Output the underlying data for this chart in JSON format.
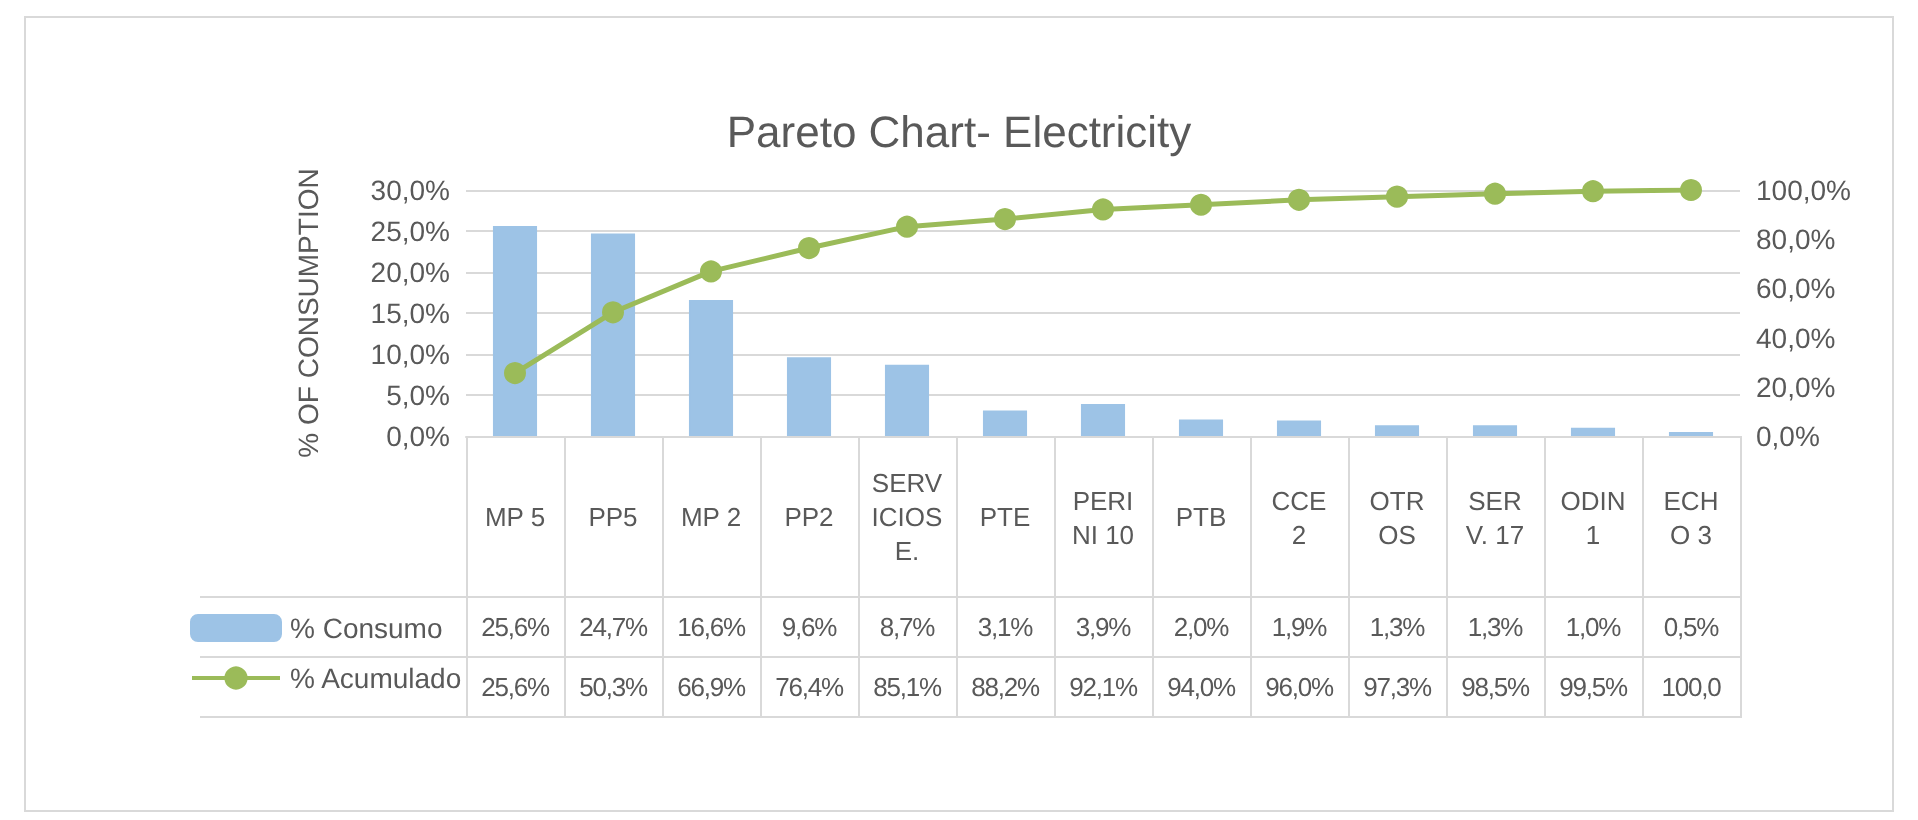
{
  "chart_data": {
    "type": "bar",
    "title": "Pareto Chart- Electricity",
    "ylabel": "% OF CONSUMPTION",
    "categories": [
      "MP 5",
      "PP5",
      "MP 2",
      "PP2",
      "SERVICIOS E.",
      "PTE",
      "PERINI 10",
      "PTB",
      "CCE 2",
      "OTROS",
      "SERV. 17",
      "ODIN1",
      "ECHO 3"
    ],
    "series": [
      {
        "name": "% Consumo",
        "color": "#9dc3e6",
        "values": [
          25.6,
          24.7,
          16.6,
          9.6,
          8.7,
          3.1,
          3.9,
          2.0,
          1.9,
          1.3,
          1.3,
          1.0,
          0.5
        ],
        "value_labels": [
          "25,6%",
          "24,7%",
          "16,6%",
          "9,6%",
          "8,7%",
          "3,1%",
          "3,9%",
          "2,0%",
          "1,9%",
          "1,3%",
          "1,3%",
          "1,0%",
          "0,5%"
        ]
      },
      {
        "name": "% Acumulado",
        "type": "line",
        "axis": "y2",
        "color": "#9bbb59",
        "marker": "circle",
        "values": [
          25.6,
          50.3,
          66.9,
          76.4,
          85.1,
          88.2,
          92.1,
          94.0,
          96.0,
          97.3,
          98.5,
          99.5,
          100.0
        ],
        "value_labels": [
          "25,6%",
          "50,3%",
          "66,9%",
          "76,4%",
          "85,1%",
          "88,2%",
          "92,1%",
          "94,0%",
          "96,0%",
          "97,3%",
          "98,5%",
          "99,5%",
          "100,0"
        ]
      }
    ],
    "ylim": [
      0,
      30
    ],
    "yticks": [
      {
        "value": 0,
        "label": "0,0%"
      },
      {
        "value": 5,
        "label": "5,0%"
      },
      {
        "value": 10,
        "label": "10,0%"
      },
      {
        "value": 15,
        "label": "15,0%"
      },
      {
        "value": 20,
        "label": "20,0%"
      },
      {
        "value": 25,
        "label": "25,0%"
      },
      {
        "value": 30,
        "label": "30,0%"
      }
    ],
    "y2lim": [
      0,
      100
    ],
    "y2ticks": [
      {
        "value": 0,
        "label": "0,0%"
      },
      {
        "value": 20,
        "label": "20,0%"
      },
      {
        "value": 40,
        "label": "40,0%"
      },
      {
        "value": 60,
        "label": "60,0%"
      },
      {
        "value": 80,
        "label": "80,0%"
      },
      {
        "value": 100,
        "label": "100,0%"
      }
    ],
    "grid": "y",
    "legend": "bottom left"
  }
}
